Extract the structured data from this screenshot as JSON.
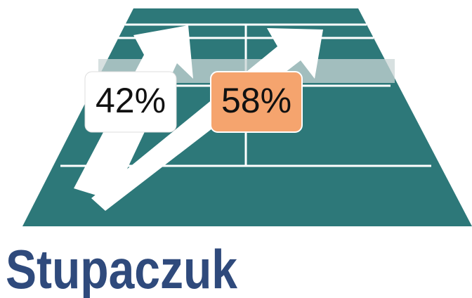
{
  "labels": [
    {
      "text": "42%"
    },
    {
      "text": "58%"
    }
  ],
  "name": "Stupaczuk"
}
